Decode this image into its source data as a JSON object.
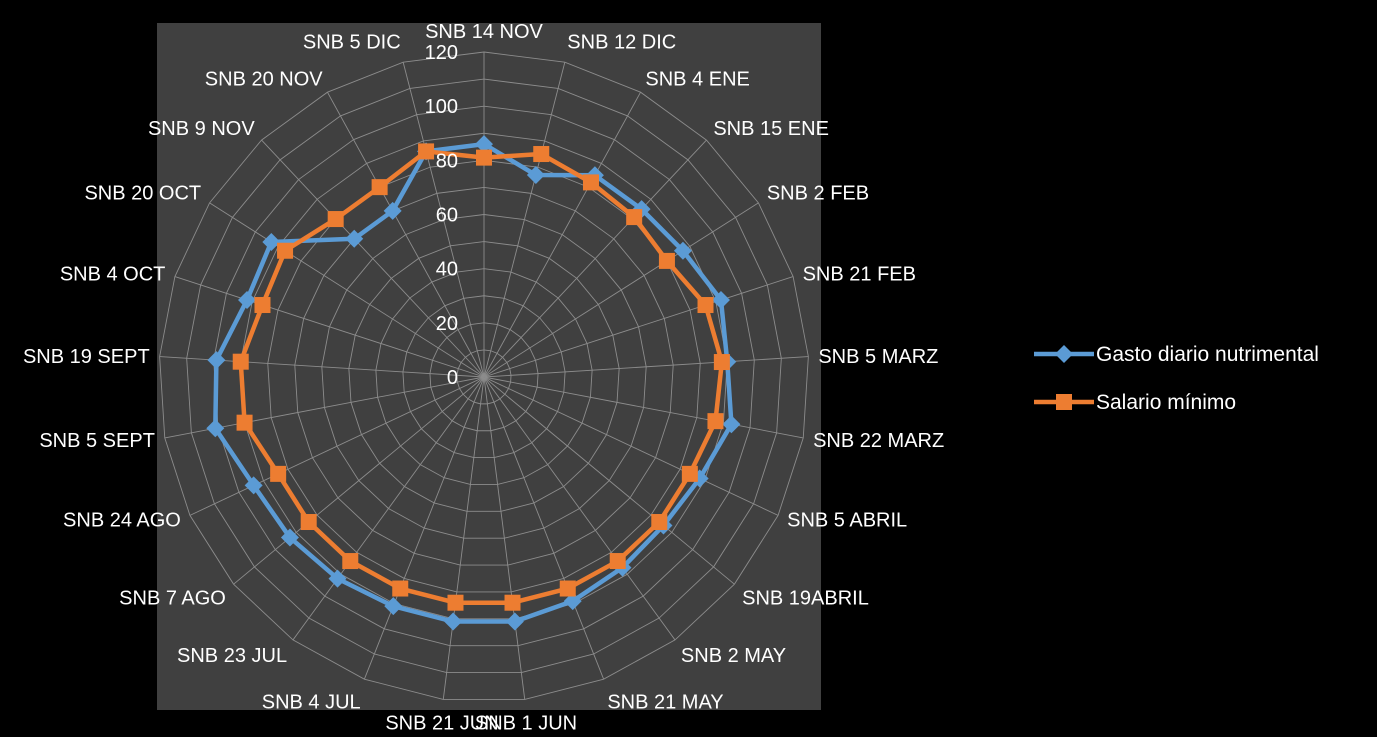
{
  "chart_data": {
    "type": "radar",
    "title": "",
    "categories": [
      "SNB 14 NOV",
      "SNB 12 DIC",
      "SNB 4 ENE",
      "SNB 15 ENE",
      "SNB 2 FEB",
      "SNB 21 FEB",
      "SNB 5 MARZ",
      "SNB 22 MARZ",
      "SNB 5 ABRIL",
      "SNB 19ABRIL",
      "SNB 2 MAY",
      "SNB 21 MAY",
      "SNB 1 JUN",
      "SNB 21 JUN",
      "SNB 4 JUL",
      "SNB 23 JUL",
      "SNB 7 AGO",
      "SNB 24 AGO",
      "SNB 5 SEPT",
      "SNB 19 SEPT",
      "SNB 4 OCT",
      "SNB 20 OCT",
      "SNB 9 NOV",
      "SNB 20 NOV",
      "SNB 5 DIC"
    ],
    "radial_ticks": [
      "0",
      "20",
      "40",
      "60",
      "80",
      "100",
      "120"
    ],
    "rlim": [
      0,
      120
    ],
    "series": [
      {
        "name": "Gasto diario nutrimental",
        "color": "#5B9BD5",
        "marker": "diamond",
        "values": [
          86,
          77,
          85,
          85,
          87,
          92,
          90,
          93,
          88,
          86,
          87,
          89,
          91,
          91,
          91,
          92,
          93,
          94,
          101,
          99,
          92,
          93,
          70,
          70,
          86
        ]
      },
      {
        "name": "Salario mínimo",
        "color": "#ED7D31",
        "marker": "square",
        "values": [
          81,
          85,
          82,
          81,
          80,
          86,
          88,
          87,
          84,
          84,
          84,
          84,
          84,
          84,
          84,
          84,
          84,
          84,
          90,
          90,
          86,
          87,
          80,
          80,
          86
        ]
      }
    ],
    "legend_position": "right",
    "grid": true
  }
}
